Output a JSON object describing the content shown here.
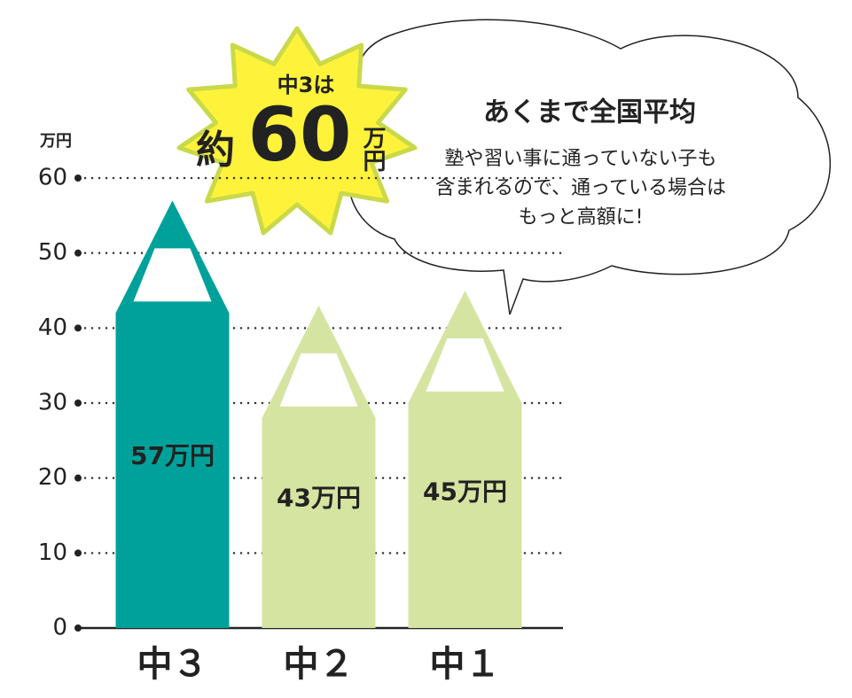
{
  "chart_data": {
    "type": "bar",
    "y_axis_label": "万円",
    "categories": [
      "中３",
      "中２",
      "中１"
    ],
    "values": [
      57,
      43,
      45
    ],
    "value_labels": [
      "57万円",
      "43万円",
      "45万円"
    ],
    "colors": [
      "#00a19a",
      "#d6e4a2",
      "#d6e4a2"
    ],
    "value_label_colors": [
      "#ffffff",
      "#222222",
      "#222222"
    ],
    "ylim": [
      0,
      60
    ],
    "yticks": [
      0,
      10,
      20,
      30,
      40,
      50,
      60
    ],
    "grid": true,
    "annotations": {
      "burst": [
        "中3は",
        "約",
        "60",
        "万円"
      ],
      "bubble_title": "あくまで全国平均",
      "bubble_lines": [
        "塾や習い事に通っていない子も",
        "含まれるので、通っている場合は",
        "もっと高額に!"
      ]
    }
  }
}
